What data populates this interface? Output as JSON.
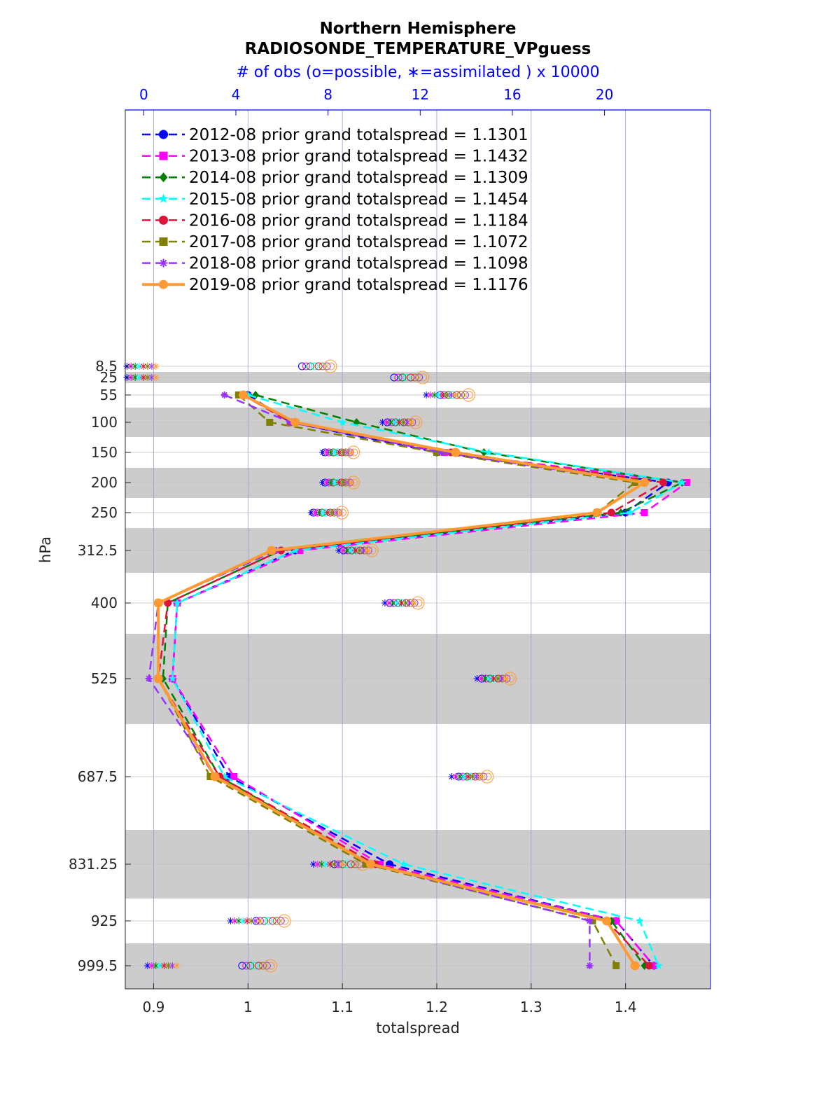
{
  "chart_data": {
    "type": "line",
    "title": "Northern Hemisphere",
    "subtitle": "RADIOSONDE_TEMPERATURE_VPguess",
    "top_axis_label": "# of obs (o=possible, ∗=assimilated ) x 10000",
    "xlabel": "totalspread",
    "ylabel": "hPa",
    "xlim": [
      0.87,
      1.49
    ],
    "x_ticks": [
      "0.9",
      "1",
      "1.1",
      "1.2",
      "1.3",
      "1.4"
    ],
    "top_xlim": [
      -0.8,
      24.6
    ],
    "top_ticks": [
      "0",
      "4",
      "8",
      "12",
      "16",
      "20"
    ],
    "y_ticks": [
      "8.5",
      "25",
      "55",
      "100",
      "150",
      "200",
      "250",
      "312.5",
      "400",
      "525",
      "687.5",
      "831.25",
      "925",
      "999.5"
    ],
    "y_reversed": true,
    "grid": true,
    "legend_position": "top-left",
    "levels": [
      55,
      100,
      150,
      200,
      250,
      312.5,
      400,
      525,
      687.5,
      831.25,
      925,
      999.5
    ],
    "series": [
      {
        "name": "2012-08 prior grand totalspread = 1.1301",
        "color": "#0000ff",
        "marker": "circle",
        "dash": "dash",
        "values": [
          1.0,
          1.045,
          1.2,
          1.445,
          1.4,
          1.05,
          0.925,
          0.92,
          0.98,
          1.15,
          1.39,
          1.43
        ]
      },
      {
        "name": "2013-08 prior grand totalspread = 1.1432",
        "color": "#ff00ff",
        "marker": "square",
        "dash": "dash",
        "values": [
          0.993,
          1.05,
          1.208,
          1.465,
          1.42,
          1.055,
          0.925,
          0.92,
          0.985,
          1.14,
          1.39,
          1.43
        ]
      },
      {
        "name": "2014-08 prior grand totalspread = 1.1309",
        "color": "#008000",
        "marker": "diamond",
        "dash": "dash",
        "values": [
          1.008,
          1.115,
          1.25,
          1.46,
          1.395,
          1.035,
          0.915,
          0.91,
          0.97,
          1.13,
          1.385,
          1.42
        ]
      },
      {
        "name": "2015-08 prior grand totalspread = 1.1454",
        "color": "#00ffff",
        "marker": "star",
        "dash": "dash",
        "values": [
          1.0,
          1.1,
          1.255,
          1.46,
          1.405,
          1.05,
          0.925,
          0.92,
          0.975,
          1.165,
          1.415,
          1.435
        ]
      },
      {
        "name": "2016-08 prior grand totalspread = 1.1184",
        "color": "#dc143c",
        "marker": "circle",
        "dash": "dash",
        "values": [
          0.995,
          1.045,
          1.215,
          1.44,
          1.385,
          1.035,
          0.915,
          0.905,
          0.97,
          1.135,
          1.38,
          1.425
        ]
      },
      {
        "name": "2017-08 prior grand totalspread = 1.1072",
        "color": "#808000",
        "marker": "square",
        "dash": "dash",
        "values": [
          0.99,
          1.023,
          1.2,
          1.41,
          1.37,
          1.025,
          0.905,
          0.905,
          0.96,
          1.125,
          1.365,
          1.39
        ]
      },
      {
        "name": "2018-08 prior grand totalspread = 1.1098",
        "color": "#9933ff",
        "marker": "asterisk",
        "dash": "dash",
        "values": [
          0.975,
          1.045,
          1.205,
          1.42,
          1.37,
          1.03,
          0.905,
          0.895,
          0.965,
          1.13,
          1.362,
          1.362
        ]
      },
      {
        "name": "2019-08 prior grand totalspread = 1.1176",
        "color": "#ff9933",
        "marker": "circle",
        "dash": "solid",
        "values": [
          0.995,
          1.05,
          1.22,
          1.42,
          1.37,
          1.025,
          0.905,
          0.905,
          0.965,
          1.13,
          1.38,
          1.41
        ]
      }
    ],
    "obs_counts": {
      "levels": [
        8.5,
        25,
        55,
        100,
        150,
        200,
        250,
        312.5,
        400,
        525,
        687.5,
        831.25,
        925,
        999.5
      ],
      "possible": [
        7.5,
        11.5,
        13.5,
        11.2,
        8.5,
        8.5,
        8.0,
        9.3,
        11.3,
        15.3,
        14.3,
        8.9,
        5.5,
        4.9
      ],
      "assimilated": [
        -0.1,
        -0.1,
        12.9,
        11.0,
        8.4,
        8.4,
        7.9,
        9.1,
        11.1,
        15.1,
        14.0,
        8.0,
        4.4,
        0.8
      ]
    }
  }
}
